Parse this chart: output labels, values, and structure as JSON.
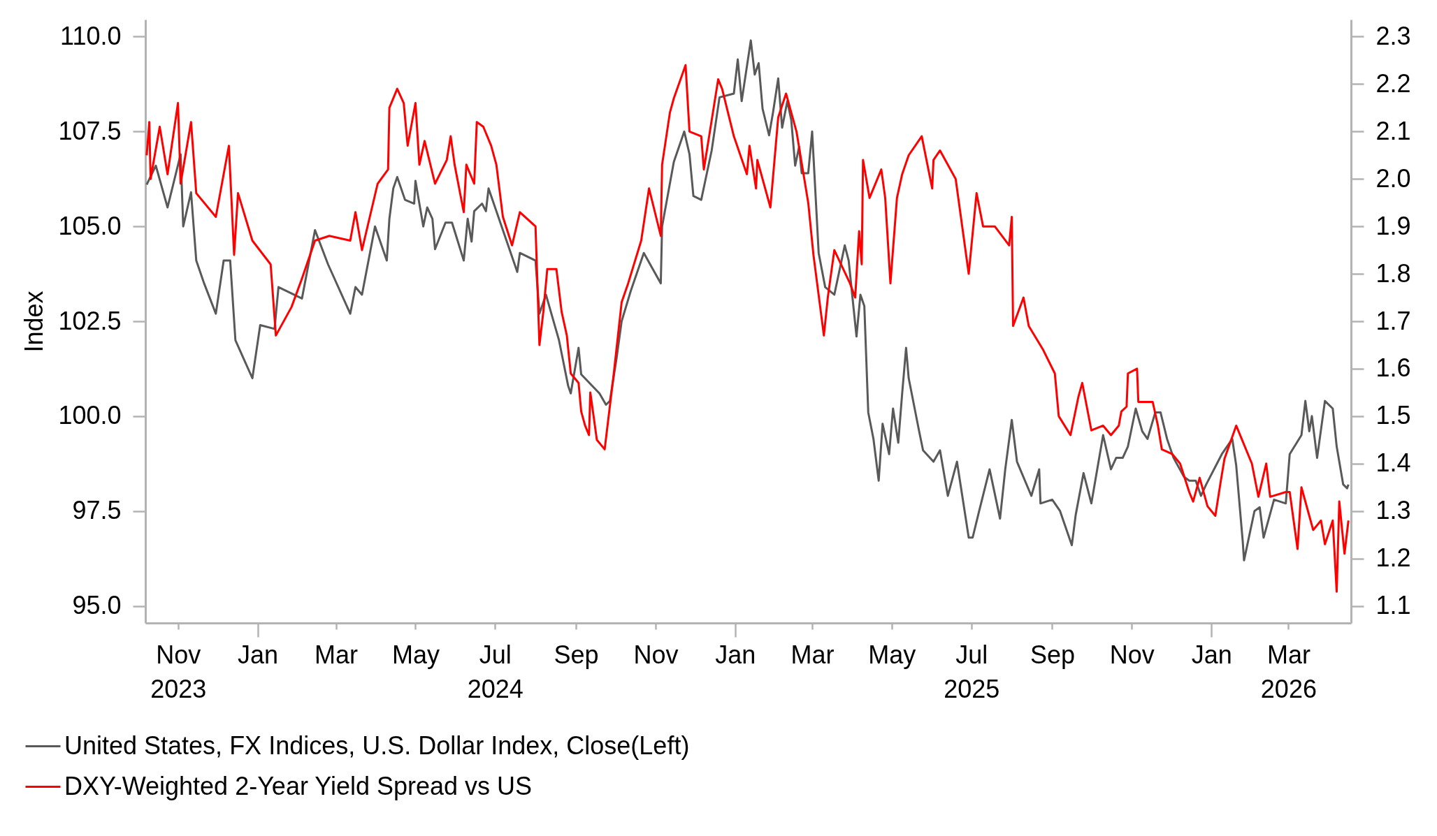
{
  "chart_data": {
    "type": "line",
    "ylabel": "Index",
    "xlim": [
      "2023-10-07",
      "2026-04-18"
    ],
    "xticks": [
      {
        "value": "2023-11-01",
        "label": "Nov\n2023"
      },
      {
        "value": "2024-01-01",
        "label": "Jan"
      },
      {
        "value": "2024-03-01",
        "label": "Mar"
      },
      {
        "value": "2024-05-01",
        "label": "May"
      },
      {
        "value": "2024-07-01",
        "label": "Jul\n2024"
      },
      {
        "value": "2024-09-01",
        "label": "Sep"
      },
      {
        "value": "2024-11-01",
        "label": "Nov"
      },
      {
        "value": "2025-01-01",
        "label": "Jan"
      },
      {
        "value": "2025-03-01",
        "label": "Mar"
      },
      {
        "value": "2025-05-01",
        "label": "May"
      },
      {
        "value": "2025-07-01",
        "label": "Jul\n2025"
      },
      {
        "value": "2025-09-01",
        "label": "Sep"
      },
      {
        "value": "2025-11-01",
        "label": "Nov"
      },
      {
        "value": "2026-01-01",
        "label": "Jan"
      },
      {
        "value": "2026-03-01",
        "label": "Mar\n2026"
      }
    ],
    "ylim": [
      94.55,
      110.45
    ],
    "yticks": [
      {
        "value": 95,
        "label": "95.0"
      },
      97.5,
      {
        "value": 100,
        "label": "100.0"
      },
      102.5,
      {
        "value": 105,
        "label": "105.0"
      },
      107.5,
      {
        "value": 110,
        "label": "110.0"
      }
    ],
    "y2lim": [
      1.064,
      2.336
    ],
    "y2ticks": [
      1.1,
      1.2,
      1.3,
      1.4,
      1.5,
      1.6,
      1.7,
      1.8,
      1.9,
      {
        "value": 2,
        "label": "2.0"
      },
      2.1,
      2.2,
      2.3
    ],
    "legend": "bottom left",
    "series": [
      {
        "name": "United States, FX Indices, U.S. Dollar Index, Close(Left)",
        "color": "#595959",
        "x": [
          "2023-10-08",
          "2023-10-15",
          "2023-10-24",
          "2023-11-03",
          "2023-11-05",
          "2023-11-11",
          "2023-11-15",
          "2023-11-21",
          "2023-11-30",
          "2023-12-06",
          "2023-12-11",
          "2023-12-15",
          "2023-12-28",
          "2024-01-03",
          "2024-01-14",
          "2024-01-17",
          "2024-02-04",
          "2024-02-14",
          "2024-02-24",
          "2024-03-12",
          "2024-03-16",
          "2024-03-21",
          "2024-03-31",
          "2024-04-09",
          "2024-04-11",
          "2024-04-14",
          "2024-04-17",
          "2024-04-23",
          "2024-04-30",
          "2024-05-01",
          "2024-05-07",
          "2024-05-10",
          "2024-05-14",
          "2024-05-16",
          "2024-05-24",
          "2024-05-29",
          "2024-06-07",
          "2024-06-10",
          "2024-06-13",
          "2024-06-15",
          "2024-06-21",
          "2024-06-24",
          "2024-06-26",
          "2024-07-07",
          "2024-07-15",
          "2024-07-18",
          "2024-07-20",
          "2024-08-01",
          "2024-08-04",
          "2024-08-09",
          "2024-08-14",
          "2024-08-19",
          "2024-08-26",
          "2024-08-28",
          "2024-09-03",
          "2024-09-05",
          "2024-09-19",
          "2024-09-24",
          "2024-09-27",
          "2024-10-02",
          "2024-10-06",
          "2024-10-13",
          "2024-10-23",
          "2024-11-05",
          "2024-11-06",
          "2024-11-15",
          "2024-11-23",
          "2024-11-27",
          "2024-11-30",
          "2024-12-06",
          "2024-12-14",
          "2024-12-20",
          "2024-12-31",
          "2025-01-03",
          "2025-01-06",
          "2025-01-13",
          "2025-01-16",
          "2025-01-19",
          "2025-01-22",
          "2025-01-27",
          "2025-01-30",
          "2025-02-03",
          "2025-02-06",
          "2025-02-10",
          "2025-02-13",
          "2025-02-16",
          "2025-02-19",
          "2025-02-21",
          "2025-02-26",
          "2025-03-01",
          "2025-03-06",
          "2025-03-11",
          "2025-03-18",
          "2025-03-26",
          "2025-03-29",
          "2025-04-04",
          "2025-04-07",
          "2025-04-10",
          "2025-04-13",
          "2025-04-17",
          "2025-04-21",
          "2025-04-24",
          "2025-04-29",
          "2025-05-02",
          "2025-05-06",
          "2025-05-09",
          "2025-05-12",
          "2025-05-14",
          "2025-05-22",
          "2025-05-25",
          "2025-06-02",
          "2025-06-07",
          "2025-06-13",
          "2025-06-20",
          "2025-06-29",
          "2025-07-02",
          "2025-07-07",
          "2025-07-15",
          "2025-07-23",
          "2025-07-27",
          "2025-08-01",
          "2025-08-05",
          "2025-08-16",
          "2025-08-22",
          "2025-08-23",
          "2025-09-01",
          "2025-09-07",
          "2025-09-16",
          "2025-09-19",
          "2025-09-25",
          "2025-10-01",
          "2025-10-10",
          "2025-10-16",
          "2025-10-20",
          "2025-10-25",
          "2025-10-29",
          "2025-11-04",
          "2025-11-09",
          "2025-11-13",
          "2025-11-19",
          "2025-11-23",
          "2025-11-28",
          "2025-12-03",
          "2025-12-11",
          "2025-12-15",
          "2025-12-20",
          "2025-12-24",
          "2025-12-28",
          "2026-01-09",
          "2026-01-17",
          "2026-01-20",
          "2026-01-25",
          "2026-01-26",
          "2026-02-03",
          "2026-02-07",
          "2026-02-10",
          "2026-02-18",
          "2026-02-27",
          "2026-03-02",
          "2026-03-11",
          "2026-03-14",
          "2026-03-17",
          "2026-03-19",
          "2026-03-23",
          "2026-03-29",
          "2026-04-04",
          "2026-04-07",
          "2026-04-12",
          "2026-04-15",
          "2026-04-16"
        ],
        "values": [
          106.1,
          106.6,
          105.5,
          106.9,
          105.0,
          105.9,
          104.1,
          103.5,
          102.7,
          104.1,
          104.1,
          102.0,
          101.0,
          102.4,
          102.3,
          103.4,
          103.1,
          104.9,
          104.0,
          102.7,
          103.4,
          103.2,
          105.0,
          104.1,
          105.2,
          106.0,
          106.3,
          105.7,
          105.6,
          106.2,
          105.0,
          105.5,
          105.2,
          104.4,
          105.1,
          105.1,
          104.1,
          105.2,
          104.6,
          105.4,
          105.6,
          105.4,
          106.0,
          104.9,
          104.1,
          103.8,
          104.3,
          104.1,
          102.7,
          103.2,
          102.6,
          102.0,
          100.8,
          100.6,
          101.8,
          101.1,
          100.6,
          100.3,
          100.4,
          101.5,
          102.5,
          103.3,
          104.3,
          103.5,
          105.0,
          106.7,
          107.5,
          106.9,
          105.8,
          105.7,
          107.0,
          108.4,
          108.5,
          109.4,
          108.3,
          109.9,
          109.0,
          109.3,
          108.1,
          107.4,
          108.0,
          108.9,
          107.6,
          108.3,
          107.8,
          106.6,
          107.1,
          106.4,
          106.4,
          107.5,
          104.3,
          103.4,
          103.2,
          104.5,
          104.1,
          102.1,
          103.2,
          102.9,
          100.1,
          99.4,
          98.3,
          99.8,
          99.0,
          100.2,
          99.3,
          100.6,
          101.8,
          101.0,
          99.6,
          99.1,
          98.8,
          99.1,
          97.9,
          98.8,
          96.8,
          96.8,
          97.5,
          98.6,
          97.3,
          98.6,
          99.9,
          98.8,
          97.9,
          98.6,
          97.7,
          97.8,
          97.5,
          96.6,
          97.4,
          98.5,
          97.7,
          99.5,
          98.6,
          98.9,
          98.9,
          99.2,
          100.2,
          99.6,
          99.4,
          100.1,
          100.1,
          99.4,
          98.9,
          98.4,
          98.3,
          98.3,
          97.9,
          98.2,
          99.0,
          99.4,
          98.7,
          96.7,
          96.2,
          97.5,
          97.6,
          96.8,
          97.8,
          97.7,
          99.0,
          99.5,
          100.4,
          99.6,
          100.0,
          98.9,
          100.4,
          100.2,
          99.2,
          98.2,
          98.1,
          98.2
        ]
      },
      {
        "name": "DXY-Weighted 2-Year Yield Spread vs US",
        "color": "#ff0000",
        "axis": "y2",
        "x": [
          "2023-10-08",
          "2023-10-10",
          "2023-10-11",
          "2023-10-18",
          "2023-10-24",
          "2023-11-01",
          "2023-11-03",
          "2023-11-11",
          "2023-11-15",
          "2023-11-30",
          "2023-12-10",
          "2023-12-14",
          "2023-12-17",
          "2023-12-28",
          "2024-01-11",
          "2024-01-15",
          "2024-01-27",
          "2024-02-04",
          "2024-02-14",
          "2024-02-25",
          "2024-03-12",
          "2024-03-16",
          "2024-03-21",
          "2024-04-02",
          "2024-04-10",
          "2024-04-11",
          "2024-04-17",
          "2024-04-22",
          "2024-04-25",
          "2024-05-01",
          "2024-05-04",
          "2024-05-08",
          "2024-05-16",
          "2024-05-25",
          "2024-05-28",
          "2024-05-31",
          "2024-06-07",
          "2024-06-09",
          "2024-06-15",
          "2024-06-17",
          "2024-06-22",
          "2024-06-28",
          "2024-07-02",
          "2024-07-07",
          "2024-07-14",
          "2024-07-20",
          "2024-08-01",
          "2024-08-04",
          "2024-08-07",
          "2024-08-10",
          "2024-08-17",
          "2024-08-21",
          "2024-08-25",
          "2024-08-28",
          "2024-09-03",
          "2024-09-05",
          "2024-09-08",
          "2024-09-11",
          "2024-09-12",
          "2024-09-17",
          "2024-09-23",
          "2024-09-30",
          "2024-10-06",
          "2024-10-11",
          "2024-10-21",
          "2024-10-27",
          "2024-11-05",
          "2024-11-06",
          "2024-11-12",
          "2024-11-15",
          "2024-11-24",
          "2024-11-27",
          "2024-12-06",
          "2024-12-08",
          "2024-12-19",
          "2024-12-22",
          "2024-12-31",
          "2025-01-10",
          "2025-01-12",
          "2025-01-17",
          "2025-01-18",
          "2025-01-28",
          "2025-02-03",
          "2025-02-09",
          "2025-02-17",
          "2025-02-26",
          "2025-03-02",
          "2025-03-10",
          "2025-03-13",
          "2025-03-18",
          "2025-03-30",
          "2025-04-03",
          "2025-04-06",
          "2025-04-08",
          "2025-04-09",
          "2025-04-14",
          "2025-04-23",
          "2025-04-26",
          "2025-04-30",
          "2025-05-05",
          "2025-05-09",
          "2025-05-14",
          "2025-05-24",
          "2025-06-01",
          "2025-06-02",
          "2025-06-07",
          "2025-06-19",
          "2025-06-29",
          "2025-07-05",
          "2025-07-10",
          "2025-07-19",
          "2025-07-30",
          "2025-08-01",
          "2025-08-02",
          "2025-08-10",
          "2025-08-14",
          "2025-08-25",
          "2025-09-03",
          "2025-09-06",
          "2025-09-15",
          "2025-09-21",
          "2025-09-24",
          "2025-10-01",
          "2025-10-10",
          "2025-10-16",
          "2025-10-22",
          "2025-10-24",
          "2025-10-28",
          "2025-10-29",
          "2025-11-05",
          "2025-11-06",
          "2025-11-17",
          "2025-11-21",
          "2025-11-24",
          "2025-12-02",
          "2025-12-08",
          "2025-12-15",
          "2025-12-18",
          "2025-12-23",
          "2025-12-29",
          "2026-01-04",
          "2026-01-08",
          "2026-01-11",
          "2026-01-20",
          "2026-01-26",
          "2026-02-01",
          "2026-02-06",
          "2026-02-12",
          "2026-02-15",
          "2026-02-27",
          "2026-03-02",
          "2026-03-08",
          "2026-03-11",
          "2026-03-17",
          "2026-03-20",
          "2026-03-26",
          "2026-03-29",
          "2026-04-04",
          "2026-04-07",
          "2026-04-09",
          "2026-04-13",
          "2026-04-16"
        ],
        "values": [
          2.05,
          2.12,
          2.0,
          2.11,
          2.01,
          2.16,
          1.99,
          2.12,
          1.97,
          1.92,
          2.07,
          1.84,
          1.97,
          1.87,
          1.82,
          1.67,
          1.73,
          1.79,
          1.87,
          1.88,
          1.87,
          1.93,
          1.85,
          1.99,
          2.02,
          2.15,
          2.19,
          2.16,
          2.07,
          2.16,
          2.03,
          2.08,
          1.99,
          2.04,
          2.09,
          2.03,
          1.93,
          2.03,
          1.99,
          2.12,
          2.11,
          2.07,
          2.03,
          1.92,
          1.86,
          1.93,
          1.9,
          1.65,
          1.72,
          1.81,
          1.81,
          1.72,
          1.67,
          1.59,
          1.57,
          1.51,
          1.48,
          1.46,
          1.55,
          1.45,
          1.43,
          1.59,
          1.74,
          1.78,
          1.87,
          1.98,
          1.88,
          2.03,
          2.14,
          2.17,
          2.24,
          2.1,
          2.09,
          2.02,
          2.21,
          2.19,
          2.09,
          2.01,
          2.07,
          1.98,
          2.04,
          1.94,
          2.13,
          2.18,
          2.1,
          1.95,
          1.84,
          1.67,
          1.75,
          1.85,
          1.78,
          1.75,
          1.89,
          1.82,
          2.04,
          1.96,
          2.02,
          1.96,
          1.78,
          1.96,
          2.01,
          2.05,
          2.09,
          1.98,
          2.04,
          2.06,
          2.0,
          1.8,
          1.97,
          1.9,
          1.9,
          1.86,
          1.92,
          1.69,
          1.75,
          1.69,
          1.64,
          1.59,
          1.5,
          1.46,
          1.54,
          1.57,
          1.47,
          1.48,
          1.46,
          1.48,
          1.51,
          1.52,
          1.59,
          1.6,
          1.53,
          1.53,
          1.48,
          1.43,
          1.42,
          1.4,
          1.34,
          1.32,
          1.37,
          1.31,
          1.29,
          1.36,
          1.41,
          1.48,
          1.44,
          1.4,
          1.33,
          1.4,
          1.33,
          1.34,
          1.34,
          1.22,
          1.35,
          1.29,
          1.26,
          1.28,
          1.23,
          1.28,
          1.13,
          1.32,
          1.21,
          1.28
        ]
      }
    ]
  }
}
